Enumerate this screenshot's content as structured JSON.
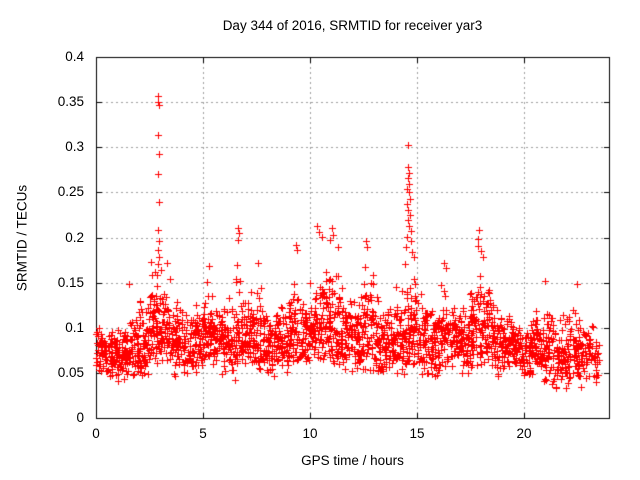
{
  "chart_data": {
    "type": "scatter",
    "title": "Day 344 of 2016, SRMTID for receiver yar3",
    "xlabel": "GPS time / hours",
    "ylabel": "SRMTID / TECUs",
    "xlim": [
      0,
      24
    ],
    "ylim": [
      0,
      0.4
    ],
    "xticks": [
      0,
      5,
      10,
      15,
      20
    ],
    "xtick_labels": [
      "0",
      "5",
      "10",
      "15",
      "20"
    ],
    "yticks": [
      0,
      0.05,
      0.1,
      0.15,
      0.2,
      0.25,
      0.3,
      0.35,
      0.4
    ],
    "ytick_labels": [
      "0",
      "0.05",
      "0.1",
      "0.15",
      "0.2",
      "0.25",
      "0.3",
      "0.35",
      "0.4"
    ],
    "grid": true,
    "legend": "none",
    "marker": "plus",
    "marker_size_px": 7,
    "marker_color": "#ff0000",
    "grid_color": "#a0a0a0",
    "axis_color": "#000000",
    "text_color": "#000000",
    "background": "#ffffff",
    "outlier_points": [
      [
        2.9,
        0.357
      ],
      [
        2.92,
        0.35
      ],
      [
        2.94,
        0.347
      ],
      [
        2.92,
        0.314
      ],
      [
        2.93,
        0.292
      ],
      [
        2.91,
        0.27
      ],
      [
        2.93,
        0.239
      ],
      [
        2.92,
        0.208
      ],
      [
        2.95,
        0.196
      ],
      [
        2.88,
        0.186
      ],
      [
        2.97,
        0.178
      ],
      [
        2.9,
        0.171
      ],
      [
        3.02,
        0.164
      ],
      [
        2.85,
        0.158
      ],
      [
        3.3,
        0.172
      ],
      [
        1.55,
        0.148
      ],
      [
        5.3,
        0.168
      ],
      [
        6.62,
        0.211
      ],
      [
        6.68,
        0.205
      ],
      [
        6.65,
        0.197
      ],
      [
        7.6,
        0.172
      ],
      [
        9.35,
        0.192
      ],
      [
        9.42,
        0.186
      ],
      [
        10.35,
        0.213
      ],
      [
        10.42,
        0.206
      ],
      [
        10.55,
        0.201
      ],
      [
        10.95,
        0.197
      ],
      [
        11.02,
        0.21
      ],
      [
        11.08,
        0.203
      ],
      [
        11.3,
        0.19
      ],
      [
        12.62,
        0.196
      ],
      [
        12.7,
        0.19
      ],
      [
        14.6,
        0.303
      ],
      [
        14.58,
        0.278
      ],
      [
        14.63,
        0.272
      ],
      [
        14.6,
        0.266
      ],
      [
        14.66,
        0.259
      ],
      [
        14.57,
        0.254
      ],
      [
        14.62,
        0.25
      ],
      [
        14.68,
        0.243
      ],
      [
        14.55,
        0.237
      ],
      [
        14.61,
        0.231
      ],
      [
        14.7,
        0.225
      ],
      [
        14.59,
        0.219
      ],
      [
        14.64,
        0.213
      ],
      [
        14.72,
        0.207
      ],
      [
        14.56,
        0.201
      ],
      [
        14.75,
        0.196
      ],
      [
        14.5,
        0.19
      ],
      [
        14.8,
        0.184
      ],
      [
        14.86,
        0.178
      ],
      [
        14.44,
        0.171
      ],
      [
        16.3,
        0.172
      ],
      [
        16.38,
        0.166
      ],
      [
        17.85,
        0.198
      ],
      [
        17.88,
        0.191
      ],
      [
        17.92,
        0.208
      ],
      [
        18.02,
        0.185
      ],
      [
        18.1,
        0.178
      ],
      [
        21.0,
        0.152
      ],
      [
        22.52,
        0.149
      ]
    ],
    "cloud_bins_format": "x_start_hours, x_end_hours, y_low, y_median, y_high, point_count",
    "cloud_bins": [
      [
        0.0,
        0.5,
        0.04,
        0.075,
        0.115,
        55
      ],
      [
        0.5,
        1.0,
        0.04,
        0.072,
        0.11,
        52
      ],
      [
        1.0,
        1.5,
        0.035,
        0.07,
        0.12,
        52
      ],
      [
        1.5,
        2.0,
        0.04,
        0.078,
        0.135,
        52
      ],
      [
        2.0,
        2.5,
        0.045,
        0.085,
        0.15,
        55
      ],
      [
        2.5,
        3.0,
        0.055,
        0.1,
        0.2,
        60
      ],
      [
        3.0,
        3.5,
        0.05,
        0.095,
        0.17,
        55
      ],
      [
        3.5,
        4.0,
        0.04,
        0.085,
        0.14,
        52
      ],
      [
        4.0,
        4.5,
        0.04,
        0.08,
        0.135,
        50
      ],
      [
        4.5,
        5.0,
        0.045,
        0.085,
        0.15,
        52
      ],
      [
        5.0,
        5.5,
        0.05,
        0.095,
        0.165,
        55
      ],
      [
        5.5,
        6.0,
        0.045,
        0.088,
        0.15,
        52
      ],
      [
        6.0,
        6.5,
        0.04,
        0.085,
        0.15,
        50
      ],
      [
        6.5,
        7.0,
        0.05,
        0.098,
        0.19,
        55
      ],
      [
        7.0,
        7.5,
        0.045,
        0.09,
        0.16,
        52
      ],
      [
        7.5,
        8.0,
        0.04,
        0.088,
        0.17,
        52
      ],
      [
        8.0,
        8.5,
        0.04,
        0.078,
        0.13,
        50
      ],
      [
        8.5,
        9.0,
        0.04,
        0.085,
        0.15,
        52
      ],
      [
        9.0,
        9.5,
        0.05,
        0.098,
        0.185,
        55
      ],
      [
        9.5,
        10.0,
        0.05,
        0.09,
        0.16,
        52
      ],
      [
        10.0,
        10.5,
        0.055,
        0.1,
        0.19,
        55
      ],
      [
        10.5,
        11.0,
        0.06,
        0.105,
        0.2,
        55
      ],
      [
        11.0,
        11.5,
        0.05,
        0.1,
        0.185,
        55
      ],
      [
        11.5,
        12.0,
        0.045,
        0.09,
        0.155,
        52
      ],
      [
        12.0,
        12.5,
        0.045,
        0.09,
        0.16,
        52
      ],
      [
        12.5,
        13.0,
        0.05,
        0.1,
        0.19,
        55
      ],
      [
        13.0,
        13.5,
        0.04,
        0.085,
        0.145,
        50
      ],
      [
        13.5,
        14.0,
        0.04,
        0.08,
        0.135,
        50
      ],
      [
        14.0,
        14.5,
        0.045,
        0.09,
        0.16,
        52
      ],
      [
        14.5,
        15.0,
        0.055,
        0.105,
        0.2,
        60
      ],
      [
        15.0,
        15.5,
        0.045,
        0.09,
        0.155,
        52
      ],
      [
        15.5,
        16.0,
        0.04,
        0.085,
        0.145,
        50
      ],
      [
        16.0,
        16.5,
        0.045,
        0.09,
        0.165,
        52
      ],
      [
        16.5,
        17.0,
        0.045,
        0.088,
        0.15,
        50
      ],
      [
        17.0,
        17.5,
        0.04,
        0.082,
        0.135,
        50
      ],
      [
        17.5,
        18.0,
        0.05,
        0.098,
        0.195,
        55
      ],
      [
        18.0,
        18.5,
        0.05,
        0.098,
        0.18,
        55
      ],
      [
        18.5,
        19.0,
        0.04,
        0.085,
        0.145,
        50
      ],
      [
        19.0,
        19.5,
        0.04,
        0.08,
        0.13,
        50
      ],
      [
        19.5,
        20.0,
        0.038,
        0.078,
        0.125,
        50
      ],
      [
        20.0,
        20.5,
        0.035,
        0.075,
        0.12,
        50
      ],
      [
        20.5,
        21.0,
        0.04,
        0.08,
        0.14,
        50
      ],
      [
        21.0,
        21.5,
        0.03,
        0.075,
        0.145,
        50
      ],
      [
        21.5,
        22.0,
        0.025,
        0.07,
        0.13,
        50
      ],
      [
        22.0,
        22.5,
        0.03,
        0.075,
        0.145,
        50
      ],
      [
        22.5,
        23.0,
        0.028,
        0.07,
        0.12,
        48
      ],
      [
        23.0,
        23.55,
        0.025,
        0.068,
        0.11,
        40
      ]
    ],
    "random_seed": 20161210
  }
}
